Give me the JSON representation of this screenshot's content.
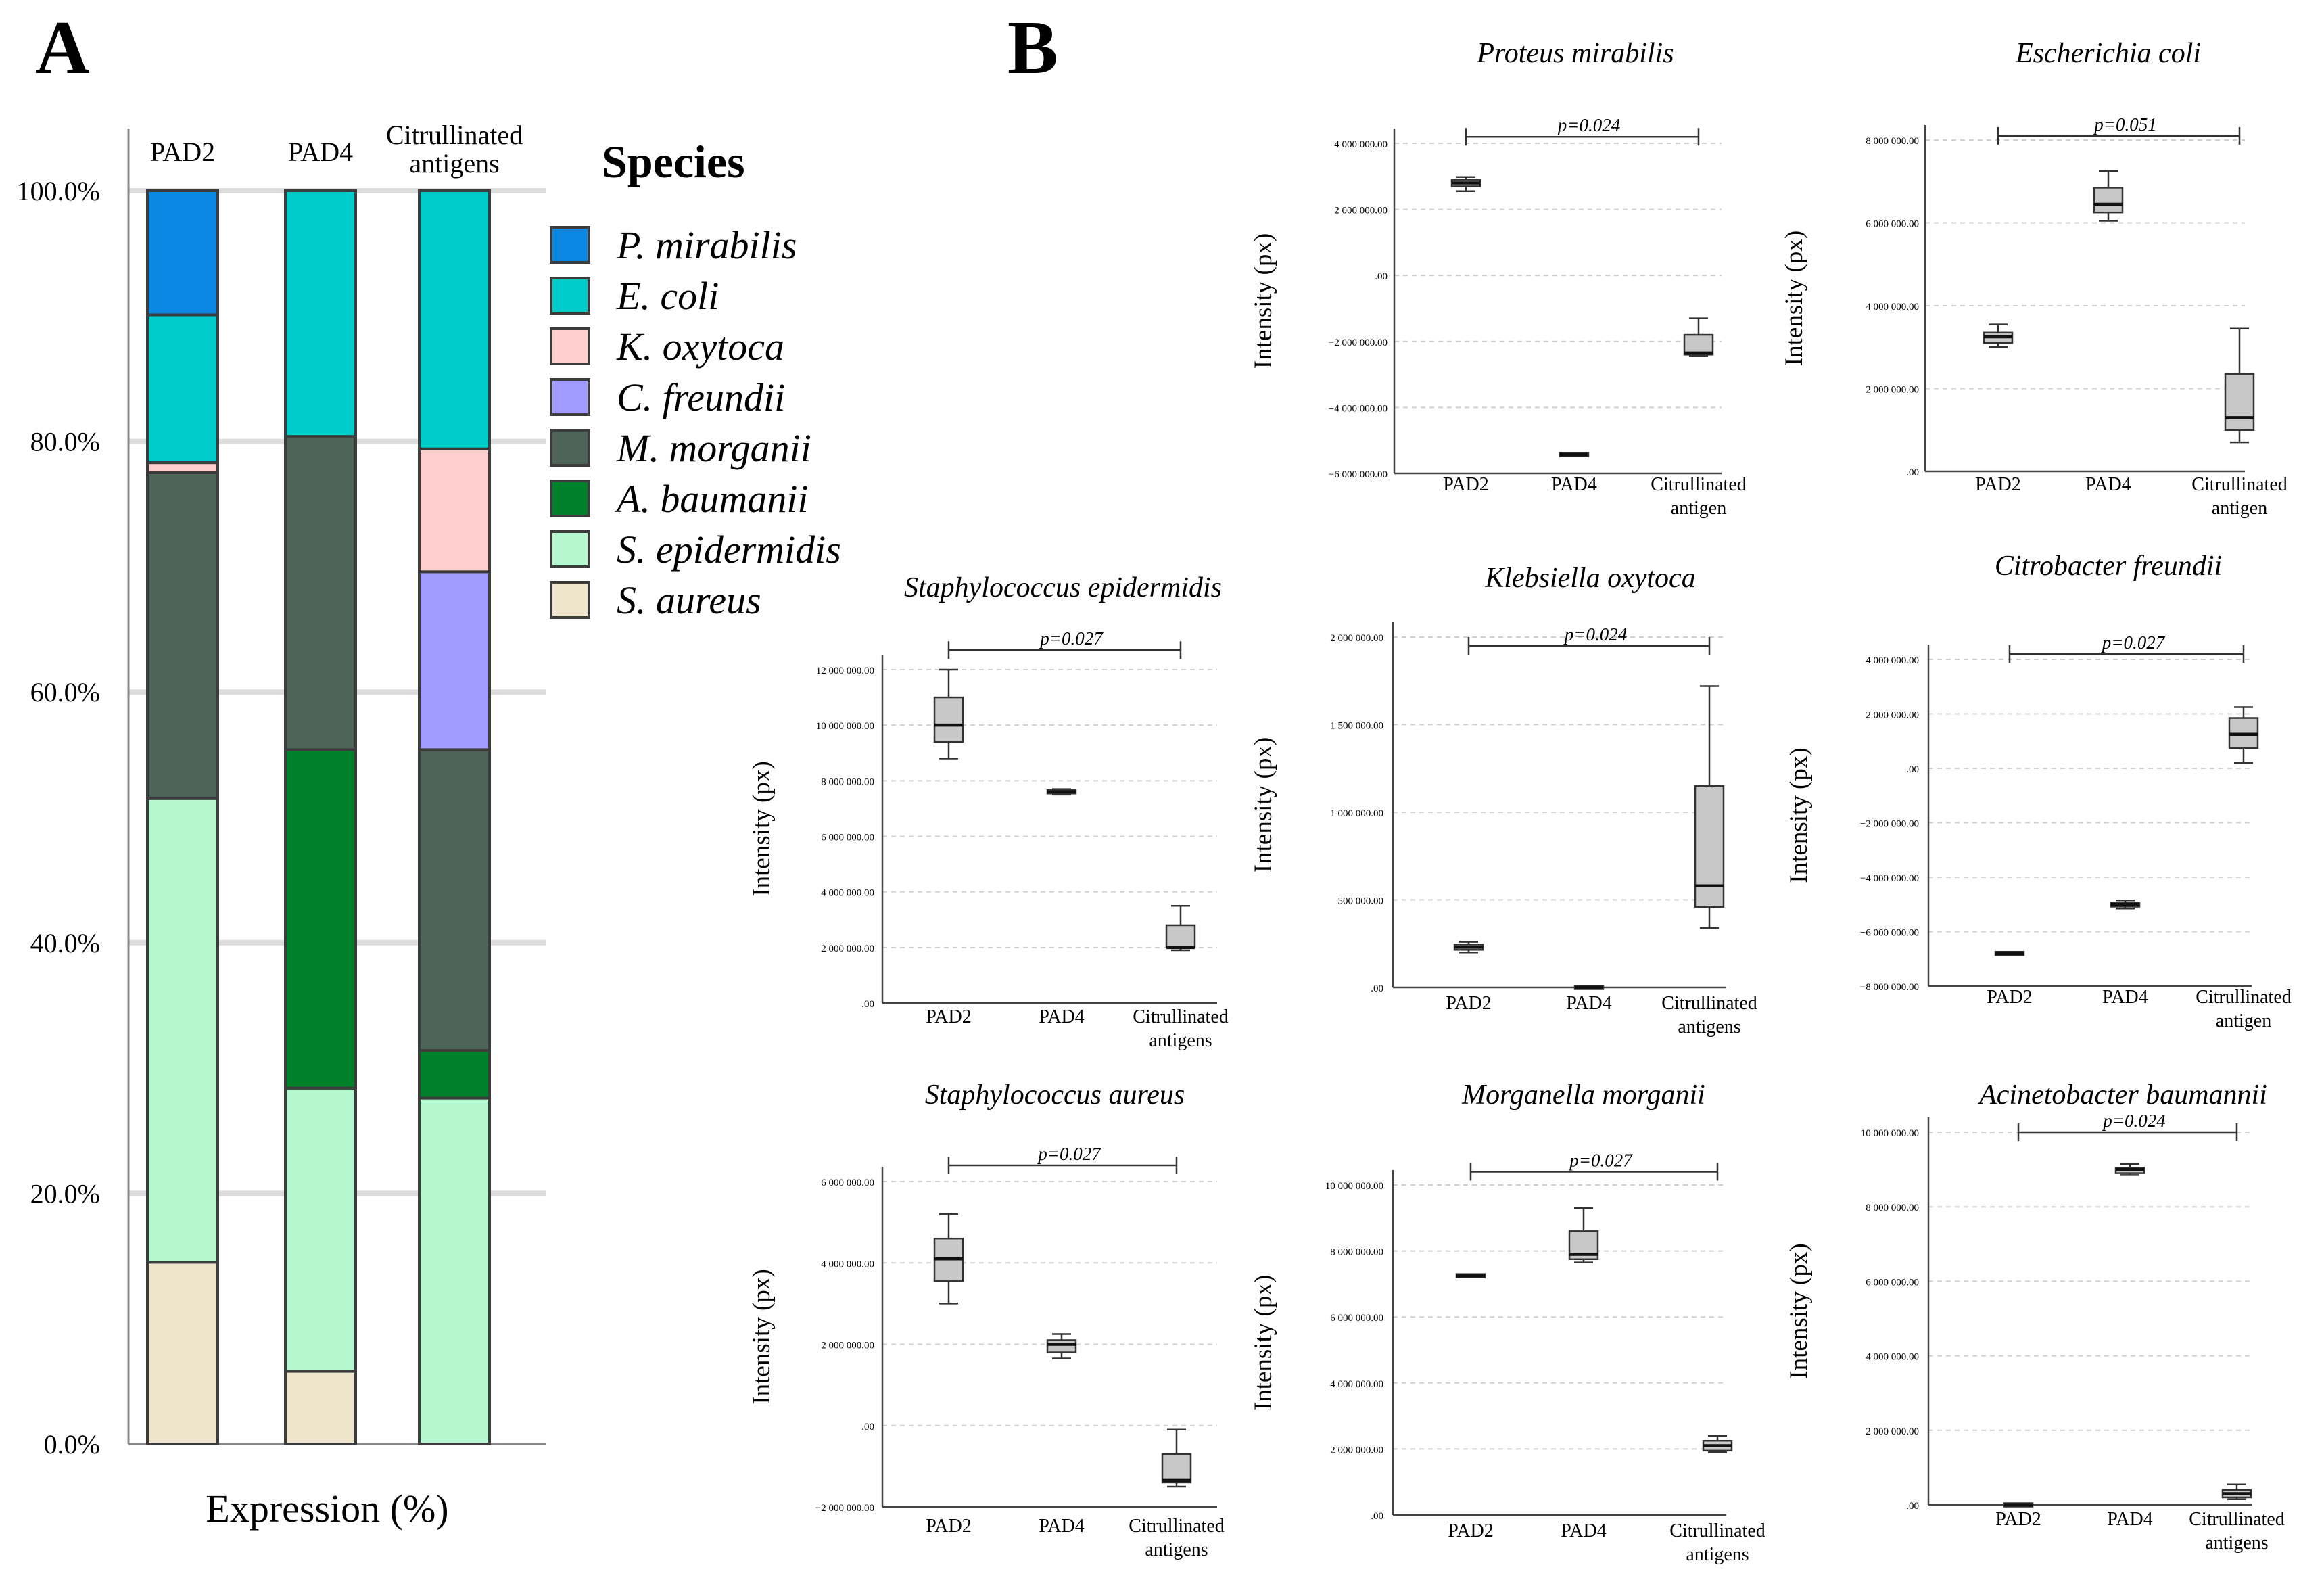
{
  "panel_labels": {
    "a": "A",
    "b": "B"
  },
  "chart_data": [
    {
      "id": "A",
      "type": "bar",
      "stacked": true,
      "categories": [
        "PAD2",
        "PAD4",
        "Citrullinated antigens"
      ],
      "xlabel": "Expression (%)",
      "ylim": [
        0,
        100
      ],
      "ytick_labels": [
        "0.0%",
        "20.0%",
        "40.0%",
        "60.0%",
        "80.0%",
        "100.0%"
      ],
      "grid": true,
      "legend_title": "Species",
      "legend_position": "right",
      "series": [
        {
          "name": "S. aureus",
          "color": "#efe4cc",
          "values": [
            14.5,
            5.8,
            0
          ]
        },
        {
          "name": "S. epidermidis",
          "color": "#b5f7cf",
          "values": [
            37,
            22.6,
            27.6
          ]
        },
        {
          "name": "A. baumanii",
          "color": "#00802a",
          "values": [
            0,
            27,
            3.8
          ]
        },
        {
          "name": "M. morganii",
          "color": "#4f6459",
          "values": [
            26,
            25,
            24
          ]
        },
        {
          "name": "C. freundii",
          "color": "#a09cff",
          "values": [
            0,
            0,
            14.2
          ]
        },
        {
          "name": "K. oxytoca",
          "color": "#ffcfcf",
          "values": [
            0.8,
            0,
            9.8
          ]
        },
        {
          "name": "E. coli",
          "color": "#00cccc",
          "values": [
            11.8,
            19.6,
            20.6
          ]
        },
        {
          "name": "P. mirabilis",
          "color": "#0a88e2",
          "values": [
            9.9,
            0,
            0
          ]
        }
      ],
      "legend_order": [
        "P. mirabilis",
        "E. coli",
        "K. oxytoca",
        "C. freundii",
        "M. morganii",
        "A. baumanii",
        "S. epidermidis",
        "S. aureus"
      ]
    },
    {
      "id": "proteus",
      "type": "box",
      "title": "Proteus mirabilis",
      "ylabel": "Intensity (px)",
      "ylim": [
        -6000000,
        4000000
      ],
      "yticks": [
        -6000000,
        -4000000,
        -2000000,
        0,
        2000000,
        4000000
      ],
      "ytick_labels": [
        "−6 000 000.00",
        "−4 000 000.00",
        "−2 000 000.00",
        ".00",
        "2 000 000.00",
        "4 000 000.00"
      ],
      "categories": [
        "PAD2",
        "PAD4",
        "Citrullinated antigen"
      ],
      "boxes": [
        {
          "min": 2550000,
          "q1": 2700000,
          "median": 2800000,
          "q3": 2900000,
          "max": 2980000
        },
        {
          "min": -5430000,
          "q1": -5430000,
          "median": -5430000,
          "q3": -5430000,
          "max": -5430000
        },
        {
          "min": -2450000,
          "q1": -2400000,
          "median": -2350000,
          "q3": -1800000,
          "max": -1300000
        }
      ],
      "pvalue": "p=0.024",
      "bracket": [
        0,
        2
      ],
      "bracket_y": 4200000
    },
    {
      "id": "ecoli",
      "type": "box",
      "title": "Escherichia coli",
      "ylabel": "Intensity (px)",
      "ylim": [
        0,
        8000000
      ],
      "yticks": [
        0,
        2000000,
        4000000,
        6000000,
        8000000
      ],
      "ytick_labels": [
        ".00",
        "2 000 000.00",
        "4 000 000.00",
        "6 000 000.00",
        "8 000 000.00"
      ],
      "categories": [
        "PAD2",
        "PAD4",
        "Citrullinated antigen"
      ],
      "boxes": [
        {
          "min": 3000000,
          "q1": 3100000,
          "median": 3250000,
          "q3": 3350000,
          "max": 3550000
        },
        {
          "min": 6050000,
          "q1": 6250000,
          "median": 6450000,
          "q3": 6850000,
          "max": 7250000
        },
        {
          "min": 700000,
          "q1": 1000000,
          "median": 1300000,
          "q3": 2350000,
          "max": 3450000
        }
      ],
      "pvalue": "p=0.051",
      "bracket": [
        0,
        2
      ],
      "bracket_y": 8100000
    },
    {
      "id": "sepi",
      "type": "box",
      "title": "Staphylococcus epidermidis",
      "ylabel": "Intensity (px)",
      "ylim": [
        0,
        12000000
      ],
      "yticks": [
        0,
        2000000,
        4000000,
        6000000,
        8000000,
        10000000,
        12000000
      ],
      "ytick_labels": [
        ".00",
        "2 000 000.00",
        "4 000 000.00",
        "6 000 000.00",
        "8 000 000.00",
        "10 000 000.00",
        "12 000 000.00"
      ],
      "categories": [
        "PAD2",
        "PAD4",
        "Citrullinated antigens"
      ],
      "boxes": [
        {
          "min": 8800000,
          "q1": 9400000,
          "median": 10000000,
          "q3": 11000000,
          "max": 12000000
        },
        {
          "min": 7500000,
          "q1": 7550000,
          "median": 7600000,
          "q3": 7650000,
          "max": 7700000
        },
        {
          "min": 1900000,
          "q1": 2000000,
          "median": 2000000,
          "q3": 2800000,
          "max": 3500000
        }
      ],
      "pvalue": "p=0.027",
      "bracket": [
        0,
        2
      ],
      "bracket_y": 12700000
    },
    {
      "id": "kleb",
      "type": "box",
      "title": "Klebsiella oxytoca",
      "ylabel": "Intensity (px)",
      "ylim": [
        0,
        2000000
      ],
      "yticks": [
        0,
        500000,
        1000000,
        1500000,
        2000000
      ],
      "ytick_labels": [
        ".00",
        "500 000.00",
        "1 000 000.00",
        "1 500 000.00",
        "2 000 000.00"
      ],
      "categories": [
        "PAD2",
        "PAD4",
        "Citrullinated antigens"
      ],
      "boxes": [
        {
          "min": 200000,
          "q1": 215000,
          "median": 230000,
          "q3": 245000,
          "max": 260000
        },
        {
          "min": 0,
          "q1": 0,
          "median": 0,
          "q3": 0,
          "max": 0
        },
        {
          "min": 340000,
          "q1": 460000,
          "median": 580000,
          "q3": 1150000,
          "max": 1720000
        }
      ],
      "pvalue": "p=0.024",
      "bracket": [
        0,
        2
      ],
      "bracket_y": 1950000
    },
    {
      "id": "citro",
      "type": "box",
      "title": "Citrobacter freundii",
      "ylabel": "Intensity (px)",
      "ylim": [
        -8000000,
        4000000
      ],
      "yticks": [
        -8000000,
        -6000000,
        -4000000,
        -2000000,
        0,
        2000000,
        4000000
      ],
      "ytick_labels": [
        "−8 000 000.00",
        "−6 000 000.00",
        "−4 000 000.00",
        "−2 000 000.00",
        ".00",
        "2 000 000.00",
        "4 000 000.00"
      ],
      "categories": [
        "PAD2",
        "PAD4",
        "Citrullinated antigen"
      ],
      "boxes": [
        {
          "min": -6800000,
          "q1": -6800000,
          "median": -6800000,
          "q3": -6800000,
          "max": -6800000
        },
        {
          "min": -5150000,
          "q1": -5080000,
          "median": -5000000,
          "q3": -4950000,
          "max": -4850000
        },
        {
          "min": 200000,
          "q1": 750000,
          "median": 1250000,
          "q3": 1850000,
          "max": 2250000
        }
      ],
      "pvalue": "p=0.027",
      "bracket": [
        0,
        2
      ],
      "bracket_y": 4200000
    },
    {
      "id": "saureus",
      "type": "box",
      "title": "Staphylococcus aureus",
      "ylabel": "Intensity (px)",
      "ylim": [
        -2000000,
        6000000
      ],
      "yticks": [
        -2000000,
        0,
        2000000,
        4000000,
        6000000
      ],
      "ytick_labels": [
        "−2 000 000.00",
        ".00",
        "2 000 000.00",
        "4 000 000.00",
        "6 000 000.00"
      ],
      "categories": [
        "PAD2",
        "PAD4",
        "Citrullinated antigens"
      ],
      "boxes": [
        {
          "min": 3000000,
          "q1": 3550000,
          "median": 4100000,
          "q3": 4600000,
          "max": 5200000
        },
        {
          "min": 1650000,
          "q1": 1800000,
          "median": 2000000,
          "q3": 2100000,
          "max": 2250000
        },
        {
          "min": -1500000,
          "q1": -1400000,
          "median": -1350000,
          "q3": -700000,
          "max": -100000
        }
      ],
      "pvalue": "p=0.027",
      "bracket": [
        0,
        2
      ],
      "bracket_y": 6400000
    },
    {
      "id": "morg",
      "type": "box",
      "title": "Morganella morganii",
      "ylabel": "Intensity (px)",
      "ylim": [
        0,
        10000000
      ],
      "yticks": [
        0,
        2000000,
        4000000,
        6000000,
        8000000,
        10000000
      ],
      "ytick_labels": [
        ".00",
        "2 000 000.00",
        "4 000 000.00",
        "6 000 000.00",
        "8 000 000.00",
        "10 000 000.00"
      ],
      "categories": [
        "PAD2",
        "PAD4",
        "Citrullinated antigens"
      ],
      "boxes": [
        {
          "min": 7250000,
          "q1": 7250000,
          "median": 7250000,
          "q3": 7250000,
          "max": 7250000
        },
        {
          "min": 7650000,
          "q1": 7750000,
          "median": 7900000,
          "q3": 8600000,
          "max": 9300000
        },
        {
          "min": 1900000,
          "q1": 1950000,
          "median": 2100000,
          "q3": 2250000,
          "max": 2400000
        }
      ],
      "pvalue": "p=0.027",
      "bracket": [
        0,
        2
      ],
      "bracket_y": 10400000
    },
    {
      "id": "acin",
      "type": "box",
      "title": "Acinetobacter baumannii",
      "ylabel": "Intensity (px)",
      "ylim": [
        0,
        10000000
      ],
      "yticks": [
        0,
        2000000,
        4000000,
        6000000,
        8000000,
        10000000
      ],
      "ytick_labels": [
        ".00",
        "2 000 000.00",
        "4 000 000.00",
        "6 000 000.00",
        "8 000 000.00",
        "10 000 000.00"
      ],
      "categories": [
        "PAD2",
        "PAD4",
        "Citrullinated antigens"
      ],
      "boxes": [
        {
          "min": 0,
          "q1": 0,
          "median": 0,
          "q3": 0,
          "max": 0
        },
        {
          "min": 8850000,
          "q1": 8900000,
          "median": 9000000,
          "q3": 9050000,
          "max": 9150000
        },
        {
          "min": 150000,
          "q1": 200000,
          "median": 300000,
          "q3": 400000,
          "max": 550000
        }
      ],
      "pvalue": "p=0.024",
      "bracket": [
        0,
        2
      ],
      "bracket_y": 10000000
    }
  ]
}
